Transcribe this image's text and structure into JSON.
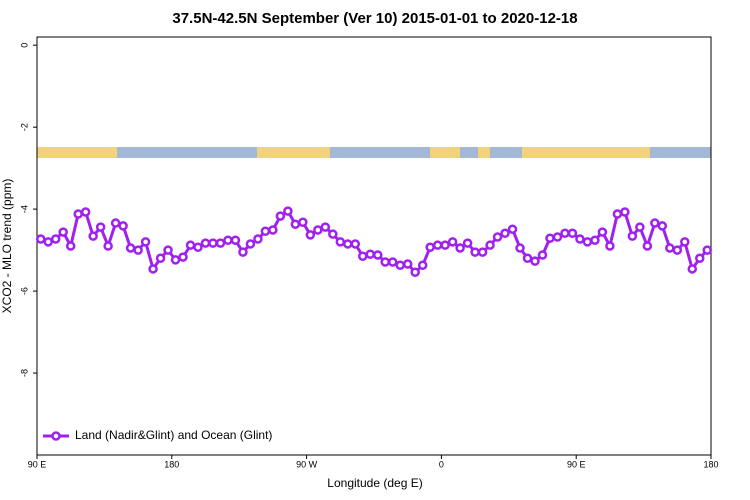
{
  "chart_data": {
    "type": "line",
    "title": "37.5N-42.5N September (Ver 10)   2015-01-01 to 2020-12-18",
    "xlabel": "Longitude (deg E)",
    "ylabel": "XCO2 - MLO trend (ppm)",
    "xlim": [
      90,
      540
    ],
    "ylim": [
      -10,
      0.2
    ],
    "xticks": [
      {
        "value": 90,
        "label": "90 E"
      },
      180,
      {
        "value": 270,
        "label": "90 W"
      },
      {
        "value": 360,
        "label": "0"
      },
      {
        "value": 450,
        "label": "90 E"
      },
      {
        "value": 540,
        "label": "180"
      }
    ],
    "yticks": [
      0,
      -2,
      -4,
      -6,
      -8
    ],
    "legend": "bottom-left",
    "x": [
      92.5,
      97.5,
      102.5,
      107.5,
      112.5,
      117.5,
      122.5,
      127.5,
      132.5,
      137.5,
      142.5,
      147.5,
      152.5,
      157.5,
      162.5,
      167.5,
      172.5,
      177.5,
      182.5,
      187.5,
      192.5,
      197.5,
      202.5,
      207.5,
      212.5,
      217.5,
      222.5,
      227.5,
      232.5,
      237.5,
      242.5,
      247.5,
      252.5,
      257.5,
      262.5,
      267.5,
      272.5,
      277.5,
      282.5,
      287.5,
      292.5,
      297.5,
      302.5,
      307.5,
      312.5,
      317.5,
      322.5,
      327.5,
      332.5,
      337.5,
      342.5,
      347.5,
      352.5,
      357.5,
      362.5,
      367.5,
      372.5,
      377.5,
      382.5,
      387.5,
      392.5,
      397.5,
      402.5,
      407.5,
      412.5,
      417.5,
      422.5,
      427.5,
      432.5,
      437.5,
      442.5,
      447.5,
      452.5,
      457.5,
      462.5,
      467.5,
      472.5,
      477.5,
      482.5,
      487.5,
      492.5,
      497.5,
      502.5,
      507.5,
      512.5,
      517.5,
      522.5,
      527.5,
      532.5,
      537.5
    ],
    "series": [
      {
        "name": "Land (Nadir&Glint) and Ocean (Glint)",
        "color": "#a020f0",
        "values": [
          -4.73,
          -4.8,
          -4.73,
          -4.56,
          -4.9,
          -4.12,
          -4.07,
          -4.66,
          -4.44,
          -4.9,
          -4.34,
          -4.41,
          -4.95,
          -5.0,
          -4.8,
          -5.46,
          -5.2,
          -5.0,
          -5.24,
          -5.17,
          -4.88,
          -4.93,
          -4.83,
          -4.83,
          -4.83,
          -4.76,
          -4.76,
          -5.05,
          -4.85,
          -4.73,
          -4.54,
          -4.51,
          -4.17,
          -4.05,
          -4.37,
          -4.32,
          -4.63,
          -4.51,
          -4.44,
          -4.61,
          -4.8,
          -4.85,
          -4.85,
          -5.15,
          -5.1,
          -5.12,
          -5.29,
          -5.29,
          -5.37,
          -5.34,
          -5.54,
          -5.37,
          -4.93,
          -4.88,
          -4.88,
          -4.8,
          -4.95,
          -4.83,
          -5.05,
          -5.05,
          -4.88,
          -4.68,
          -4.59,
          -4.49,
          -4.95,
          -5.2,
          -5.27,
          -5.12,
          -4.71,
          -4.68,
          -4.59,
          -4.59,
          -4.73,
          -4.8,
          -4.76,
          -4.56,
          -4.9,
          -4.12,
          -4.07,
          -4.66,
          -4.44,
          -4.9,
          -4.34,
          -4.41,
          -4.95,
          -5.0,
          -4.8,
          -5.46,
          -5.2,
          -5.0
        ]
      }
    ]
  }
}
